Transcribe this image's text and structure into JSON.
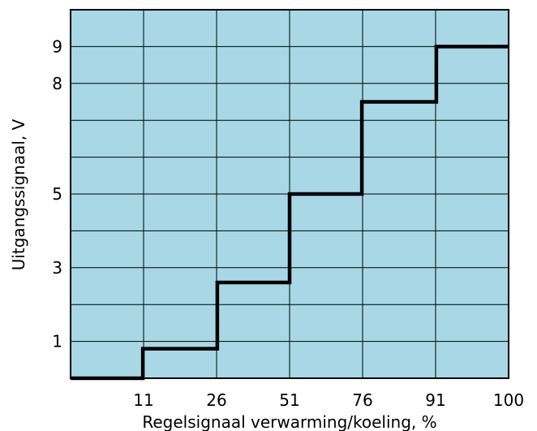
{
  "chart_data": {
    "type": "line",
    "xlabel": "Regelsignaal verwarming/koeling, %",
    "ylabel": "Uitgangssignaal, V",
    "xlim": [
      0,
      100
    ],
    "ylim": [
      0,
      10
    ],
    "x_ticks": [
      11,
      26,
      51,
      76,
      91,
      100
    ],
    "y_ticks": [
      1,
      3,
      5,
      8,
      9
    ],
    "grid": true,
    "background_color": "#a8d8e6",
    "line_color": "#000000",
    "series": [
      {
        "x": [
          0,
          16.5,
          16.5,
          33.5,
          33.5,
          50,
          50,
          66.5,
          66.5,
          83.5,
          83.5,
          100
        ],
        "y": [
          0,
          0,
          0.8,
          0.8,
          2.6,
          2.6,
          5,
          5,
          7.5,
          7.5,
          9,
          9
        ]
      }
    ]
  }
}
